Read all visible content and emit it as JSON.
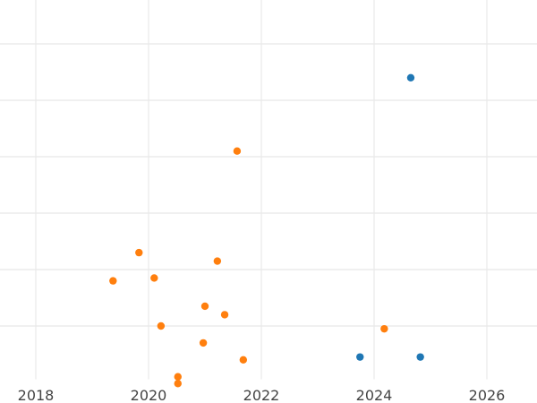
{
  "chart_data": {
    "type": "scatter",
    "title": "",
    "xlabel": "",
    "ylabel": "",
    "x_axis_type": "date",
    "xlim": [
      2017.8,
      2026.9
    ],
    "ylim": [
      0,
      7
    ],
    "x_ticks": [
      "2018",
      "2020",
      "2022",
      "2024",
      "2026"
    ],
    "y_ticks_unlabeled": [
      1,
      2,
      3,
      4,
      5,
      6,
      7
    ],
    "grid": true,
    "legend": "none",
    "series": [
      {
        "color": "#1f77b4",
        "points": [
          {
            "x": 2023.75,
            "y": 0.45
          },
          {
            "x": 2024.65,
            "y": 5.4
          },
          {
            "x": 2024.82,
            "y": 0.45
          }
        ]
      },
      {
        "color": "#ff7f0e",
        "points": [
          {
            "x": 2019.37,
            "y": 1.8
          },
          {
            "x": 2019.83,
            "y": 2.3
          },
          {
            "x": 2020.1,
            "y": 1.85
          },
          {
            "x": 2020.22,
            "y": 1.0
          },
          {
            "x": 2020.52,
            "y": 0.1
          },
          {
            "x": 2020.52,
            "y": -0.02
          },
          {
            "x": 2020.97,
            "y": 0.7
          },
          {
            "x": 2021.0,
            "y": 1.35
          },
          {
            "x": 2021.22,
            "y": 2.15
          },
          {
            "x": 2021.35,
            "y": 1.2
          },
          {
            "x": 2021.57,
            "y": 4.1
          },
          {
            "x": 2021.68,
            "y": 0.4
          },
          {
            "x": 2024.18,
            "y": 0.95
          }
        ]
      }
    ]
  }
}
